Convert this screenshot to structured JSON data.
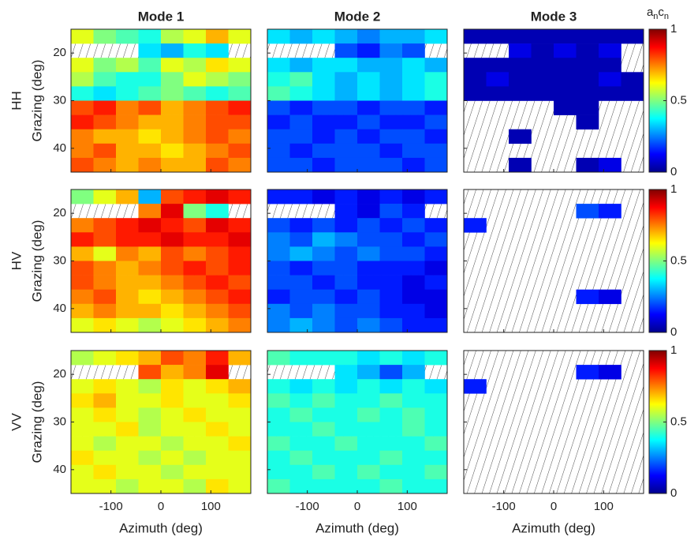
{
  "chart_data": {
    "type": "heatmap",
    "col_titles": [
      "Mode 1",
      "Mode 2",
      "Mode 3"
    ],
    "row_labels": [
      "HH",
      "HV",
      "VV"
    ],
    "xlabel": "Azimuth (deg)",
    "ylabel": "Grazing (deg)",
    "x_edges": [
      -180,
      -135,
      -90,
      -45,
      0,
      45,
      90,
      135,
      180
    ],
    "y_edges": [
      15,
      18,
      21,
      24,
      27,
      30,
      33,
      36,
      39,
      42,
      45
    ],
    "xlim": [
      -180,
      180
    ],
    "ylim": [
      15,
      45
    ],
    "xticks": [
      -100,
      0,
      100
    ],
    "yticks": [
      20,
      30,
      40
    ],
    "clim": [
      0,
      1
    ],
    "cticks": [
      0,
      0.5,
      1
    ],
    "colorbar_label": [
      "a",
      "n",
      "c",
      "n"
    ],
    "colormap": "jet",
    "panels": [
      [
        [
          [
            0.6,
            0.5,
            0.45,
            0.4,
            0.55,
            0.6,
            0.7,
            0.6
          ],
          [
            null,
            null,
            null,
            0.35,
            0.3,
            0.4,
            0.35,
            null
          ],
          [
            0.6,
            0.5,
            0.55,
            0.45,
            0.6,
            0.55,
            0.65,
            0.6
          ],
          [
            0.55,
            0.45,
            0.4,
            0.4,
            0.5,
            0.6,
            0.55,
            0.5
          ],
          [
            0.4,
            0.35,
            0.4,
            0.45,
            0.5,
            0.45,
            0.4,
            0.45
          ],
          [
            0.8,
            0.85,
            0.75,
            0.8,
            0.7,
            0.75,
            0.8,
            0.85
          ],
          [
            0.85,
            0.8,
            0.75,
            0.7,
            0.7,
            0.75,
            0.8,
            0.8
          ],
          [
            0.75,
            0.7,
            0.7,
            0.65,
            0.7,
            0.75,
            0.8,
            0.75
          ],
          [
            0.75,
            0.8,
            0.7,
            0.7,
            0.65,
            0.7,
            0.75,
            0.8
          ],
          [
            0.8,
            0.75,
            0.7,
            0.75,
            0.7,
            0.7,
            0.8,
            0.75
          ]
        ],
        [
          [
            0.35,
            0.3,
            0.35,
            0.3,
            0.25,
            0.3,
            0.3,
            0.35
          ],
          [
            null,
            null,
            null,
            0.2,
            0.15,
            0.25,
            0.2,
            null
          ],
          [
            0.35,
            0.3,
            0.35,
            0.35,
            0.3,
            0.3,
            0.35,
            0.3
          ],
          [
            0.4,
            0.45,
            0.35,
            0.3,
            0.35,
            0.3,
            0.35,
            0.4
          ],
          [
            0.45,
            0.4,
            0.35,
            0.3,
            0.35,
            0.3,
            0.35,
            0.4
          ],
          [
            0.2,
            0.15,
            0.2,
            0.2,
            0.15,
            0.2,
            0.2,
            0.15
          ],
          [
            0.15,
            0.2,
            0.15,
            0.15,
            0.2,
            0.15,
            0.15,
            0.2
          ],
          [
            0.2,
            0.2,
            0.15,
            0.2,
            0.15,
            0.2,
            0.2,
            0.15
          ],
          [
            0.2,
            0.15,
            0.2,
            0.2,
            0.2,
            0.15,
            0.2,
            0.2
          ],
          [
            0.2,
            0.2,
            0.15,
            0.2,
            0.2,
            0.2,
            0.15,
            0.2
          ]
        ],
        [
          [
            0.05,
            0.05,
            0.05,
            0.05,
            0.05,
            0.05,
            0.05,
            0.05
          ],
          [
            null,
            null,
            0.1,
            0.05,
            0.1,
            0.05,
            0.1,
            null
          ],
          [
            0.05,
            0.05,
            0.05,
            0.05,
            0.05,
            0.05,
            0.05,
            null
          ],
          [
            0.05,
            0.1,
            0.05,
            0.05,
            0.05,
            0.05,
            0.1,
            0.05
          ],
          [
            0.05,
            0.05,
            0.05,
            0.05,
            0.05,
            0.05,
            0.05,
            0.05
          ],
          [
            null,
            null,
            null,
            null,
            0.05,
            0.05,
            null,
            null
          ],
          [
            null,
            null,
            null,
            null,
            null,
            0.05,
            null,
            null
          ],
          [
            null,
            null,
            0.05,
            null,
            null,
            null,
            null,
            null
          ],
          [
            null,
            null,
            null,
            null,
            null,
            null,
            null,
            null
          ],
          [
            null,
            null,
            0.05,
            null,
            null,
            0.05,
            0.1,
            null
          ]
        ]
      ],
      [
        [
          [
            0.5,
            0.6,
            0.7,
            0.3,
            0.8,
            0.85,
            0.9,
            0.85
          ],
          [
            null,
            null,
            null,
            0.75,
            0.9,
            0.5,
            0.4,
            null
          ],
          [
            0.75,
            0.8,
            0.85,
            0.9,
            0.85,
            0.8,
            0.9,
            0.85
          ],
          [
            0.85,
            0.8,
            0.85,
            0.85,
            0.9,
            0.85,
            0.85,
            0.9
          ],
          [
            0.7,
            0.6,
            0.75,
            0.7,
            0.8,
            0.75,
            0.8,
            0.85
          ],
          [
            0.8,
            0.75,
            0.7,
            0.75,
            0.8,
            0.85,
            0.8,
            0.85
          ],
          [
            0.8,
            0.75,
            0.7,
            0.7,
            0.75,
            0.8,
            0.85,
            0.8
          ],
          [
            0.75,
            0.8,
            0.7,
            0.65,
            0.7,
            0.75,
            0.8,
            0.85
          ],
          [
            0.7,
            0.75,
            0.7,
            0.7,
            0.65,
            0.7,
            0.75,
            0.8
          ],
          [
            0.6,
            0.65,
            0.6,
            0.55,
            0.6,
            0.65,
            0.7,
            0.75
          ]
        ],
        [
          [
            0.15,
            0.15,
            0.1,
            0.15,
            0.1,
            0.15,
            0.1,
            0.15
          ],
          [
            null,
            null,
            null,
            0.15,
            0.1,
            0.2,
            0.15,
            null
          ],
          [
            0.2,
            0.15,
            0.2,
            0.15,
            0.2,
            0.15,
            0.2,
            0.15
          ],
          [
            0.25,
            0.2,
            0.3,
            0.25,
            0.2,
            0.2,
            0.15,
            0.2
          ],
          [
            0.25,
            0.3,
            0.25,
            0.2,
            0.25,
            0.2,
            0.2,
            0.15
          ],
          [
            0.2,
            0.15,
            0.2,
            0.2,
            0.15,
            0.15,
            0.15,
            0.1
          ],
          [
            0.2,
            0.2,
            0.15,
            0.2,
            0.15,
            0.15,
            0.1,
            0.15
          ],
          [
            0.15,
            0.2,
            0.2,
            0.15,
            0.2,
            0.15,
            0.1,
            0.1
          ],
          [
            0.25,
            0.2,
            0.25,
            0.2,
            0.2,
            0.15,
            0.15,
            0.1
          ],
          [
            0.25,
            0.3,
            0.25,
            0.2,
            0.25,
            0.2,
            0.15,
            0.15
          ]
        ],
        [
          [
            null,
            null,
            null,
            null,
            null,
            null,
            null,
            null
          ],
          [
            null,
            null,
            null,
            null,
            null,
            0.2,
            0.15,
            null
          ],
          [
            0.15,
            null,
            null,
            null,
            null,
            null,
            null,
            null
          ],
          [
            null,
            null,
            null,
            null,
            null,
            null,
            null,
            null
          ],
          [
            null,
            null,
            null,
            null,
            null,
            null,
            null,
            null
          ],
          [
            null,
            null,
            null,
            null,
            null,
            null,
            null,
            null
          ],
          [
            null,
            null,
            null,
            null,
            null,
            null,
            null,
            null
          ],
          [
            null,
            null,
            null,
            null,
            null,
            0.15,
            0.1,
            null
          ],
          [
            null,
            null,
            null,
            null,
            null,
            null,
            null,
            null
          ],
          [
            null,
            null,
            null,
            null,
            null,
            null,
            null,
            null
          ]
        ]
      ],
      [
        [
          [
            0.55,
            0.6,
            0.65,
            0.7,
            0.8,
            0.75,
            0.85,
            0.7
          ],
          [
            null,
            null,
            null,
            0.8,
            0.7,
            0.75,
            0.9,
            null
          ],
          [
            0.6,
            0.65,
            0.6,
            0.55,
            0.65,
            0.6,
            0.65,
            0.7
          ],
          [
            0.65,
            0.7,
            0.6,
            0.6,
            0.65,
            0.6,
            0.6,
            0.65
          ],
          [
            0.6,
            0.65,
            0.6,
            0.55,
            0.6,
            0.65,
            0.6,
            0.6
          ],
          [
            0.6,
            0.6,
            0.65,
            0.55,
            0.6,
            0.6,
            0.65,
            0.6
          ],
          [
            0.6,
            0.55,
            0.6,
            0.6,
            0.55,
            0.6,
            0.6,
            0.65
          ],
          [
            0.65,
            0.6,
            0.6,
            0.55,
            0.6,
            0.55,
            0.6,
            0.6
          ],
          [
            0.6,
            0.65,
            0.6,
            0.6,
            0.55,
            0.6,
            0.6,
            0.6
          ],
          [
            0.6,
            0.6,
            0.55,
            0.6,
            0.6,
            0.55,
            0.65,
            0.6
          ]
        ],
        [
          [
            0.45,
            0.4,
            0.4,
            0.4,
            0.35,
            0.4,
            0.35,
            0.4
          ],
          [
            null,
            null,
            null,
            0.35,
            0.3,
            0.2,
            0.3,
            null
          ],
          [
            0.4,
            0.35,
            0.4,
            0.35,
            0.4,
            0.35,
            0.4,
            0.35
          ],
          [
            0.45,
            0.4,
            0.45,
            0.4,
            0.4,
            0.45,
            0.4,
            0.4
          ],
          [
            0.4,
            0.45,
            0.4,
            0.4,
            0.45,
            0.4,
            0.45,
            0.4
          ],
          [
            0.4,
            0.4,
            0.45,
            0.4,
            0.4,
            0.4,
            0.45,
            0.4
          ],
          [
            0.45,
            0.4,
            0.4,
            0.45,
            0.4,
            0.4,
            0.4,
            0.45
          ],
          [
            0.4,
            0.45,
            0.4,
            0.4,
            0.4,
            0.45,
            0.4,
            0.4
          ],
          [
            0.4,
            0.4,
            0.45,
            0.4,
            0.45,
            0.4,
            0.4,
            0.45
          ],
          [
            0.45,
            0.4,
            0.4,
            0.4,
            0.4,
            0.45,
            0.4,
            0.4
          ]
        ],
        [
          [
            null,
            null,
            null,
            null,
            null,
            null,
            null,
            null
          ],
          [
            null,
            null,
            null,
            null,
            null,
            0.15,
            0.1,
            null
          ],
          [
            0.15,
            null,
            null,
            null,
            null,
            null,
            null,
            null
          ],
          [
            null,
            null,
            null,
            null,
            null,
            null,
            null,
            null
          ],
          [
            null,
            null,
            null,
            null,
            null,
            null,
            null,
            null
          ],
          [
            null,
            null,
            null,
            null,
            null,
            null,
            null,
            null
          ],
          [
            null,
            null,
            null,
            null,
            null,
            null,
            null,
            null
          ],
          [
            null,
            null,
            null,
            null,
            null,
            null,
            null,
            null
          ],
          [
            null,
            null,
            null,
            null,
            null,
            null,
            null,
            null
          ],
          [
            null,
            null,
            null,
            null,
            null,
            null,
            null,
            null
          ]
        ]
      ]
    ]
  }
}
